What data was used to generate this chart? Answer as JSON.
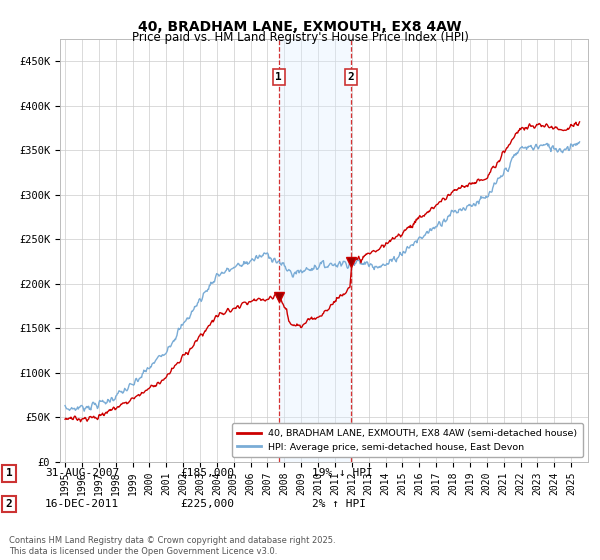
{
  "title": "40, BRADHAM LANE, EXMOUTH, EX8 4AW",
  "subtitle": "Price paid vs. HM Land Registry's House Price Index (HPI)",
  "ylim": [
    0,
    475000
  ],
  "yticks": [
    0,
    50000,
    100000,
    150000,
    200000,
    250000,
    300000,
    350000,
    400000,
    450000
  ],
  "ytick_labels": [
    "£0",
    "£50K",
    "£100K",
    "£150K",
    "£200K",
    "£250K",
    "£300K",
    "£350K",
    "£400K",
    "£450K"
  ],
  "xlim_start": 1995,
  "xlim_end": 2025.5,
  "line1_color": "#cc0000",
  "line2_color": "#7aacd6",
  "sale1_year": 2007.667,
  "sale1_price": 185000,
  "sale2_year": 2011.958,
  "sale2_price": 225000,
  "shade_color": "#ddeeff",
  "vline_color": "#cc0000",
  "vline2_color": "#cc0000",
  "legend_label1": "40, BRADHAM LANE, EXMOUTH, EX8 4AW (semi-detached house)",
  "legend_label2": "HPI: Average price, semi-detached house, East Devon",
  "annotation1_label": "1",
  "annotation1_date": "31-AUG-2007",
  "annotation1_price": "£185,000",
  "annotation1_pct": "19% ↓ HPI",
  "annotation2_label": "2",
  "annotation2_date": "16-DEC-2011",
  "annotation2_price": "£225,000",
  "annotation2_pct": "2% ↑ HPI",
  "footer": "Contains HM Land Registry data © Crown copyright and database right 2025.\nThis data is licensed under the Open Government Licence v3.0.",
  "background_color": "#ffffff",
  "grid_color": "#cccccc",
  "title_fontsize": 10,
  "subtitle_fontsize": 8.5
}
